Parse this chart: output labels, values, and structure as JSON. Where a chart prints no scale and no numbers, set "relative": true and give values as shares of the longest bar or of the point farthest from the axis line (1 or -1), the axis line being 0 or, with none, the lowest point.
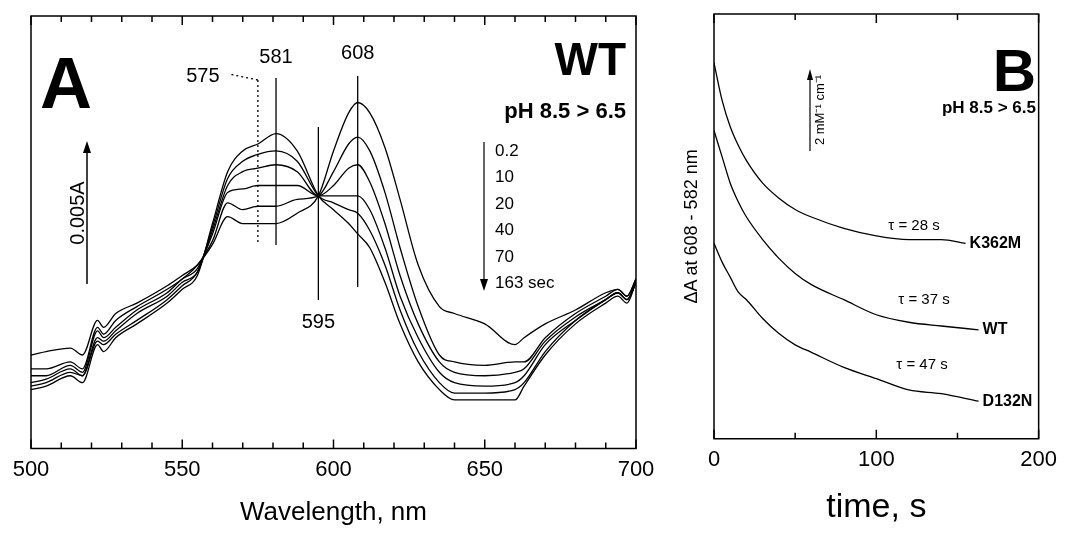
{
  "chart_data": [
    {
      "type": "line",
      "title": "A",
      "xlabel": "Wavelength, nm",
      "relative": true,
      "x": [
        500,
        505,
        513,
        517,
        522,
        524,
        528,
        535,
        545,
        550,
        555,
        560,
        565,
        570,
        575,
        581,
        588,
        595,
        600,
        605,
        608,
        612,
        617,
        622,
        628,
        635,
        640,
        650,
        660,
        663,
        670,
        680,
        690,
        694,
        697,
        700
      ],
      "xlim": [
        500,
        700
      ],
      "xticks": [
        500,
        {
          "value": 510,
          "label": null
        },
        {
          "value": 520,
          "label": null
        },
        {
          "value": 530,
          "label": null
        },
        {
          "value": 540,
          "label": null
        },
        550,
        {
          "value": 560,
          "label": null
        },
        {
          "value": 570,
          "label": null
        },
        {
          "value": 580,
          "label": null
        },
        {
          "value": 590,
          "label": null
        },
        600,
        {
          "value": 610,
          "label": null
        },
        {
          "value": 620,
          "label": null
        },
        {
          "value": 630,
          "label": null
        },
        {
          "value": 640,
          "label": null
        },
        650,
        {
          "value": 660,
          "label": null
        },
        {
          "value": 670,
          "label": null
        },
        {
          "value": 680,
          "label": null
        },
        {
          "value": 690,
          "label": null
        },
        700
      ],
      "series": [
        {
          "color": "#000000",
          "values": [
            0.17,
            0.18,
            0.21,
            0.19,
            0.3,
            0.28,
            0.32,
            0.36,
            0.42,
            0.46,
            0.5,
            0.65,
            0.8,
            0.86,
            0.88,
            0.91,
            0.86,
            0.73,
            0.69,
            0.65,
            0.62,
            0.58,
            0.48,
            0.36,
            0.25,
            0.17,
            0.14,
            0.14,
            0.14,
            0.18,
            0.27,
            0.36,
            0.42,
            0.44,
            0.42,
            0.48
          ]
        },
        {
          "color": "#000000",
          "values": [
            0.18,
            0.19,
            0.22,
            0.21,
            0.31,
            0.3,
            0.33,
            0.37,
            0.43,
            0.47,
            0.51,
            0.64,
            0.78,
            0.83,
            0.85,
            0.86,
            0.83,
            0.73,
            0.71,
            0.69,
            0.68,
            0.63,
            0.53,
            0.4,
            0.28,
            0.19,
            0.16,
            0.16,
            0.17,
            0.19,
            0.28,
            0.37,
            0.43,
            0.45,
            0.43,
            0.48
          ]
        },
        {
          "color": "#000000",
          "values": [
            0.19,
            0.2,
            0.23,
            0.21,
            0.32,
            0.31,
            0.34,
            0.39,
            0.44,
            0.48,
            0.51,
            0.63,
            0.76,
            0.8,
            0.81,
            0.82,
            0.8,
            0.73,
            0.73,
            0.73,
            0.73,
            0.69,
            0.58,
            0.44,
            0.32,
            0.22,
            0.19,
            0.18,
            0.19,
            0.21,
            0.3,
            0.37,
            0.43,
            0.45,
            0.43,
            0.48
          ]
        },
        {
          "color": "#000000",
          "values": [
            0.21,
            0.21,
            0.24,
            0.22,
            0.34,
            0.32,
            0.35,
            0.4,
            0.45,
            0.49,
            0.52,
            0.62,
            0.74,
            0.75,
            0.76,
            0.76,
            0.76,
            0.73,
            0.76,
            0.81,
            0.82,
            0.77,
            0.65,
            0.5,
            0.36,
            0.25,
            0.22,
            0.21,
            0.22,
            0.23,
            0.31,
            0.38,
            0.43,
            0.45,
            0.43,
            0.48
          ]
        },
        {
          "color": "#000000",
          "values": [
            0.23,
            0.23,
            0.25,
            0.23,
            0.35,
            0.33,
            0.37,
            0.41,
            0.46,
            0.49,
            0.53,
            0.6,
            0.71,
            0.69,
            0.7,
            0.7,
            0.72,
            0.73,
            0.8,
            0.88,
            0.9,
            0.86,
            0.74,
            0.58,
            0.41,
            0.27,
            0.25,
            0.24,
            0.25,
            0.25,
            0.32,
            0.39,
            0.44,
            0.46,
            0.44,
            0.49
          ]
        },
        {
          "color": "#000000",
          "values": [
            0.27,
            0.28,
            0.29,
            0.27,
            0.37,
            0.35,
            0.39,
            0.42,
            0.47,
            0.5,
            0.53,
            0.59,
            0.67,
            0.65,
            0.65,
            0.65,
            0.68,
            0.73,
            0.86,
            0.97,
            1.0,
            0.97,
            0.87,
            0.72,
            0.53,
            0.41,
            0.39,
            0.36,
            0.3,
            0.32,
            0.36,
            0.4,
            0.45,
            0.46,
            0.44,
            0.49
          ]
        }
      ],
      "ref_lines": [
        {
          "axis": "x",
          "value": 575,
          "label": "575",
          "line_style": "dotted"
        },
        {
          "axis": "x",
          "value": 581,
          "label": "581"
        },
        {
          "axis": "x",
          "value": 595,
          "label": "595"
        },
        {
          "axis": "x",
          "value": 608,
          "label": "608"
        }
      ],
      "annotations": [
        "WT",
        "pH 8.5 > 6.5",
        "0.005A",
        "0.2",
        "10",
        "20",
        "40",
        "70",
        "163 sec"
      ]
    },
    {
      "type": "line",
      "title": "B",
      "xlabel": "time, s",
      "ylabel": "ΔA at 608 - 582 nm",
      "relative": true,
      "xlim": [
        0,
        200
      ],
      "xticks": [
        0,
        {
          "value": 50,
          "label": null
        },
        100,
        {
          "value": 150,
          "label": null
        },
        200
      ],
      "series": [
        {
          "name": "K362M",
          "color": "#000000",
          "x": [
            0,
            5,
            10,
            15,
            20,
            30,
            40,
            50,
            60,
            80,
            100,
            120,
            140,
            155
          ],
          "values": [
            1.0,
            0.9,
            0.83,
            0.78,
            0.74,
            0.68,
            0.64,
            0.61,
            0.59,
            0.56,
            0.54,
            0.53,
            0.53,
            0.52
          ]
        },
        {
          "name": "WT",
          "color": "#000000",
          "x": [
            0,
            5,
            10,
            15,
            20,
            30,
            40,
            50,
            60,
            80,
            100,
            120,
            140,
            163
          ],
          "values": [
            0.82,
            0.75,
            0.68,
            0.63,
            0.59,
            0.53,
            0.48,
            0.44,
            0.41,
            0.37,
            0.33,
            0.31,
            0.3,
            0.29
          ]
        },
        {
          "name": "D132N",
          "color": "#000000",
          "x": [
            0,
            5,
            10,
            15,
            20,
            30,
            40,
            50,
            60,
            80,
            100,
            120,
            140,
            163
          ],
          "values": [
            0.52,
            0.47,
            0.43,
            0.39,
            0.37,
            0.32,
            0.28,
            0.25,
            0.23,
            0.19,
            0.16,
            0.13,
            0.12,
            0.1
          ]
        }
      ],
      "annotations": [
        "pH 8.5 > 6.5",
        "2 mM⁻¹ cm⁻¹",
        "τ = 28 s",
        "τ = 37 s",
        "τ = 47 s"
      ]
    }
  ]
}
